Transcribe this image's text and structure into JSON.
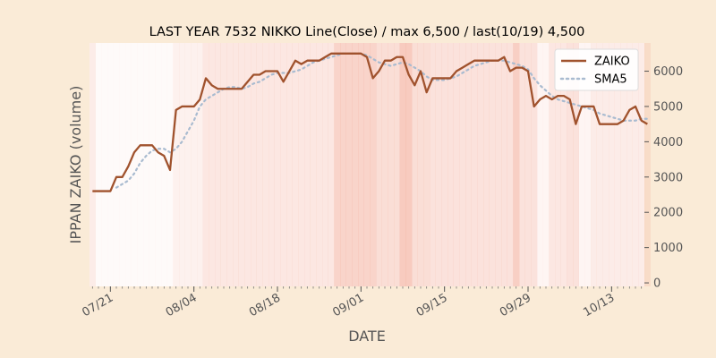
{
  "chart_data": {
    "type": "line",
    "title": "LAST YEAR 7532 NIKKO Line(Close) / max 6,500 / last(10/19) 4,500",
    "xlabel": "DATE",
    "ylabel": "IPPAN ZAIKO (volume)",
    "ylim": [
      -100,
      6800
    ],
    "yticks": [
      0,
      1000,
      2000,
      3000,
      4000,
      5000,
      6000
    ],
    "ytick_labels": [
      "0",
      "1000",
      "2000",
      "3000",
      "4000",
      "5000",
      "6000"
    ],
    "x_start": "2018-07-18",
    "x_range_days": [
      -0.5,
      92.5
    ],
    "xticks": [
      {
        "day": 3,
        "label": "07/21"
      },
      {
        "day": 17,
        "label": "08/04"
      },
      {
        "day": 31,
        "label": "08/18"
      },
      {
        "day": 45,
        "label": "09/01"
      },
      {
        "day": 59,
        "label": "09/15"
      },
      {
        "day": 73,
        "label": "09/29"
      },
      {
        "day": 87,
        "label": "10/13"
      }
    ],
    "legend_position": "top-right",
    "grid": false,
    "colors": {
      "zaiko": "#A0522D",
      "sma5": "#A9BBD0",
      "background": "#FAEBD7",
      "plot_background": "#FFFFFF",
      "shade": "#F2A08A"
    },
    "series": [
      {
        "name": "ZAIKO",
        "points": [
          [
            0,
            2600
          ],
          [
            1,
            2600
          ],
          [
            2,
            2600
          ],
          [
            3,
            2600
          ],
          [
            4,
            3000
          ],
          [
            5,
            3000
          ],
          [
            6,
            3300
          ],
          [
            7,
            3700
          ],
          [
            8,
            3900
          ],
          [
            9,
            3900
          ],
          [
            10,
            3900
          ],
          [
            11,
            3700
          ],
          [
            12,
            3600
          ],
          [
            13,
            3200
          ],
          [
            14,
            4900
          ],
          [
            15,
            5000
          ],
          [
            16,
            5000
          ],
          [
            17,
            5000
          ],
          [
            18,
            5200
          ],
          [
            19,
            5800
          ],
          [
            20,
            5600
          ],
          [
            21,
            5500
          ],
          [
            22,
            5500
          ],
          [
            23,
            5500
          ],
          [
            24,
            5500
          ],
          [
            25,
            5500
          ],
          [
            26,
            5700
          ],
          [
            27,
            5900
          ],
          [
            28,
            5900
          ],
          [
            29,
            6000
          ],
          [
            30,
            6000
          ],
          [
            31,
            6000
          ],
          [
            32,
            5700
          ],
          [
            33,
            6000
          ],
          [
            34,
            6300
          ],
          [
            35,
            6200
          ],
          [
            36,
            6300
          ],
          [
            37,
            6300
          ],
          [
            38,
            6300
          ],
          [
            39,
            6400
          ],
          [
            40,
            6500
          ],
          [
            41,
            6500
          ],
          [
            42,
            6500
          ],
          [
            43,
            6500
          ],
          [
            44,
            6500
          ],
          [
            45,
            6500
          ],
          [
            46,
            6400
          ],
          [
            47,
            5800
          ],
          [
            48,
            6000
          ],
          [
            49,
            6300
          ],
          [
            50,
            6300
          ],
          [
            51,
            6400
          ],
          [
            52,
            6400
          ],
          [
            53,
            5900
          ],
          [
            54,
            5600
          ],
          [
            55,
            6000
          ],
          [
            56,
            5400
          ],
          [
            57,
            5800
          ],
          [
            58,
            5800
          ],
          [
            59,
            5800
          ],
          [
            60,
            5800
          ],
          [
            61,
            6000
          ],
          [
            62,
            6100
          ],
          [
            63,
            6200
          ],
          [
            64,
            6300
          ],
          [
            65,
            6300
          ],
          [
            66,
            6300
          ],
          [
            67,
            6300
          ],
          [
            68,
            6300
          ],
          [
            69,
            6400
          ],
          [
            70,
            6000
          ],
          [
            71,
            6100
          ],
          [
            72,
            6100
          ],
          [
            73,
            6000
          ],
          [
            74,
            5000
          ],
          [
            75,
            5200
          ],
          [
            76,
            5300
          ],
          [
            77,
            5200
          ],
          [
            78,
            5300
          ],
          [
            79,
            5300
          ],
          [
            80,
            5200
          ],
          [
            81,
            4500
          ],
          [
            82,
            5000
          ],
          [
            83,
            5000
          ],
          [
            84,
            5000
          ],
          [
            85,
            4500
          ],
          [
            86,
            4500
          ],
          [
            87,
            4500
          ],
          [
            88,
            4500
          ],
          [
            89,
            4600
          ],
          [
            90,
            4900
          ],
          [
            91,
            5000
          ],
          [
            92,
            4600
          ],
          [
            93,
            4500
          ]
        ]
      },
      {
        "name": "SMA5",
        "points": [
          [
            4,
            2700
          ],
          [
            5,
            2800
          ],
          [
            6,
            2900
          ],
          [
            7,
            3100
          ],
          [
            8,
            3400
          ],
          [
            9,
            3600
          ],
          [
            10,
            3750
          ],
          [
            11,
            3800
          ],
          [
            12,
            3800
          ],
          [
            13,
            3700
          ],
          [
            14,
            3800
          ],
          [
            15,
            4000
          ],
          [
            16,
            4300
          ],
          [
            17,
            4600
          ],
          [
            18,
            5000
          ],
          [
            19,
            5200
          ],
          [
            20,
            5300
          ],
          [
            21,
            5400
          ],
          [
            22,
            5500
          ],
          [
            23,
            5550
          ],
          [
            24,
            5550
          ],
          [
            25,
            5500
          ],
          [
            26,
            5550
          ],
          [
            27,
            5650
          ],
          [
            28,
            5700
          ],
          [
            29,
            5800
          ],
          [
            30,
            5900
          ],
          [
            31,
            5950
          ],
          [
            32,
            5950
          ],
          [
            33,
            5950
          ],
          [
            34,
            6000
          ],
          [
            35,
            6050
          ],
          [
            36,
            6150
          ],
          [
            37,
            6250
          ],
          [
            38,
            6300
          ],
          [
            39,
            6350
          ],
          [
            40,
            6400
          ],
          [
            41,
            6450
          ],
          [
            42,
            6500
          ],
          [
            43,
            6500
          ],
          [
            44,
            6500
          ],
          [
            45,
            6500
          ],
          [
            46,
            6450
          ],
          [
            47,
            6350
          ],
          [
            48,
            6250
          ],
          [
            49,
            6200
          ],
          [
            50,
            6150
          ],
          [
            51,
            6200
          ],
          [
            52,
            6250
          ],
          [
            53,
            6200
          ],
          [
            54,
            6100
          ],
          [
            55,
            6000
          ],
          [
            56,
            5850
          ],
          [
            57,
            5750
          ],
          [
            58,
            5750
          ],
          [
            59,
            5750
          ],
          [
            60,
            5800
          ],
          [
            61,
            5850
          ],
          [
            62,
            5950
          ],
          [
            63,
            6050
          ],
          [
            64,
            6150
          ],
          [
            65,
            6200
          ],
          [
            66,
            6250
          ],
          [
            67,
            6300
          ],
          [
            68,
            6300
          ],
          [
            69,
            6300
          ],
          [
            70,
            6250
          ],
          [
            71,
            6200
          ],
          [
            72,
            6150
          ],
          [
            73,
            6050
          ],
          [
            74,
            5800
          ],
          [
            75,
            5600
          ],
          [
            76,
            5450
          ],
          [
            77,
            5300
          ],
          [
            78,
            5200
          ],
          [
            79,
            5150
          ],
          [
            80,
            5100
          ],
          [
            81,
            5050
          ],
          [
            82,
            5000
          ],
          [
            83,
            4950
          ],
          [
            84,
            4900
          ],
          [
            85,
            4800
          ],
          [
            86,
            4750
          ],
          [
            87,
            4700
          ],
          [
            88,
            4650
          ],
          [
            89,
            4600
          ],
          [
            90,
            4600
          ],
          [
            91,
            4600
          ],
          [
            92,
            4650
          ],
          [
            93,
            4650
          ]
        ]
      }
    ],
    "shading_alpha_per_day": [
      0.2,
      0.05,
      0.05,
      0.05,
      0.05,
      0.05,
      0.05,
      0.05,
      0.05,
      0.05,
      0.05,
      0.05,
      0.05,
      0.05,
      0.15,
      0.15,
      0.15,
      0.15,
      0.15,
      0.25,
      0.25,
      0.25,
      0.25,
      0.25,
      0.25,
      0.25,
      0.25,
      0.25,
      0.25,
      0.25,
      0.25,
      0.25,
      0.25,
      0.25,
      0.25,
      0.25,
      0.25,
      0.25,
      0.25,
      0.25,
      0.25,
      0.45,
      0.45,
      0.45,
      0.45,
      0.45,
      0.45,
      0.45,
      0.35,
      0.35,
      0.35,
      0.35,
      0.55,
      0.55,
      0.35,
      0.35,
      0.35,
      0.3,
      0.3,
      0.3,
      0.3,
      0.3,
      0.3,
      0.3,
      0.3,
      0.3,
      0.3,
      0.3,
      0.3,
      0.3,
      0.3,
      0.5,
      0.3,
      0.3,
      0.3,
      0.1,
      0.1,
      0.25,
      0.25,
      0.25,
      0.3,
      0.3,
      0.1,
      0.1,
      0.2,
      0.2,
      0.2,
      0.2,
      0.2,
      0.2,
      0.2,
      0.2,
      0.2,
      0.2
    ]
  }
}
